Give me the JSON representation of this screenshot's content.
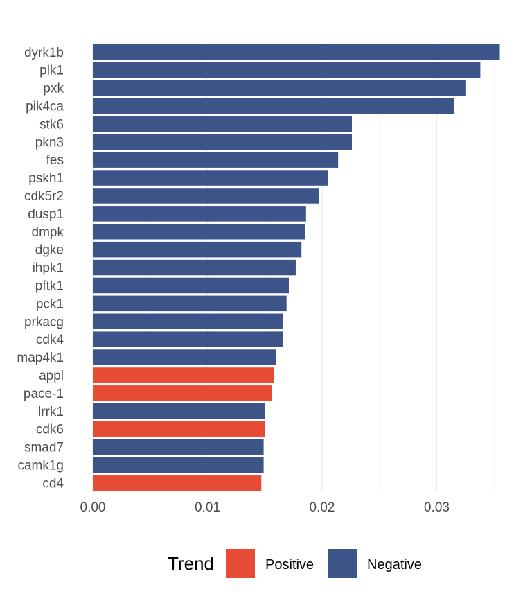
{
  "chart_data": {
    "type": "bar",
    "orientation": "horizontal",
    "title": "",
    "xlabel": "",
    "ylabel": "",
    "xlim": [
      0,
      0.0355
    ],
    "x_ticks": [
      0.0,
      0.01,
      0.02,
      0.03
    ],
    "x_tick_labels": [
      "0.00",
      "0.01",
      "0.02",
      "0.03"
    ],
    "grid": true,
    "legend": {
      "title": "Trend",
      "position": "bottom",
      "entries": [
        {
          "label": "Positive",
          "color": "#e64b35"
        },
        {
          "label": "Negative",
          "color": "#3c5488"
        }
      ]
    },
    "categories": [
      "dyrk1b",
      "plk1",
      "pxk",
      "pik4ca",
      "stk6",
      "pkn3",
      "fes",
      "pskh1",
      "cdk5r2",
      "dusp1",
      "dmpk",
      "dgke",
      "ihpk1",
      "pftk1",
      "pck1",
      "prkacg",
      "cdk4",
      "map4k1",
      "appl",
      "pace-1",
      "lrrk1",
      "cdk6",
      "smad7",
      "camk1g",
      "cd4"
    ],
    "values": [
      0.0355,
      0.0338,
      0.0325,
      0.0315,
      0.0226,
      0.0226,
      0.0214,
      0.0205,
      0.0197,
      0.0186,
      0.0185,
      0.0182,
      0.0177,
      0.0171,
      0.0169,
      0.0166,
      0.0166,
      0.016,
      0.0158,
      0.0156,
      0.015,
      0.015,
      0.0149,
      0.0149,
      0.0147
    ],
    "trend": [
      "Negative",
      "Negative",
      "Negative",
      "Negative",
      "Negative",
      "Negative",
      "Negative",
      "Negative",
      "Negative",
      "Negative",
      "Negative",
      "Negative",
      "Negative",
      "Negative",
      "Negative",
      "Negative",
      "Negative",
      "Negative",
      "Positive",
      "Positive",
      "Negative",
      "Positive",
      "Negative",
      "Negative",
      "Positive"
    ]
  }
}
